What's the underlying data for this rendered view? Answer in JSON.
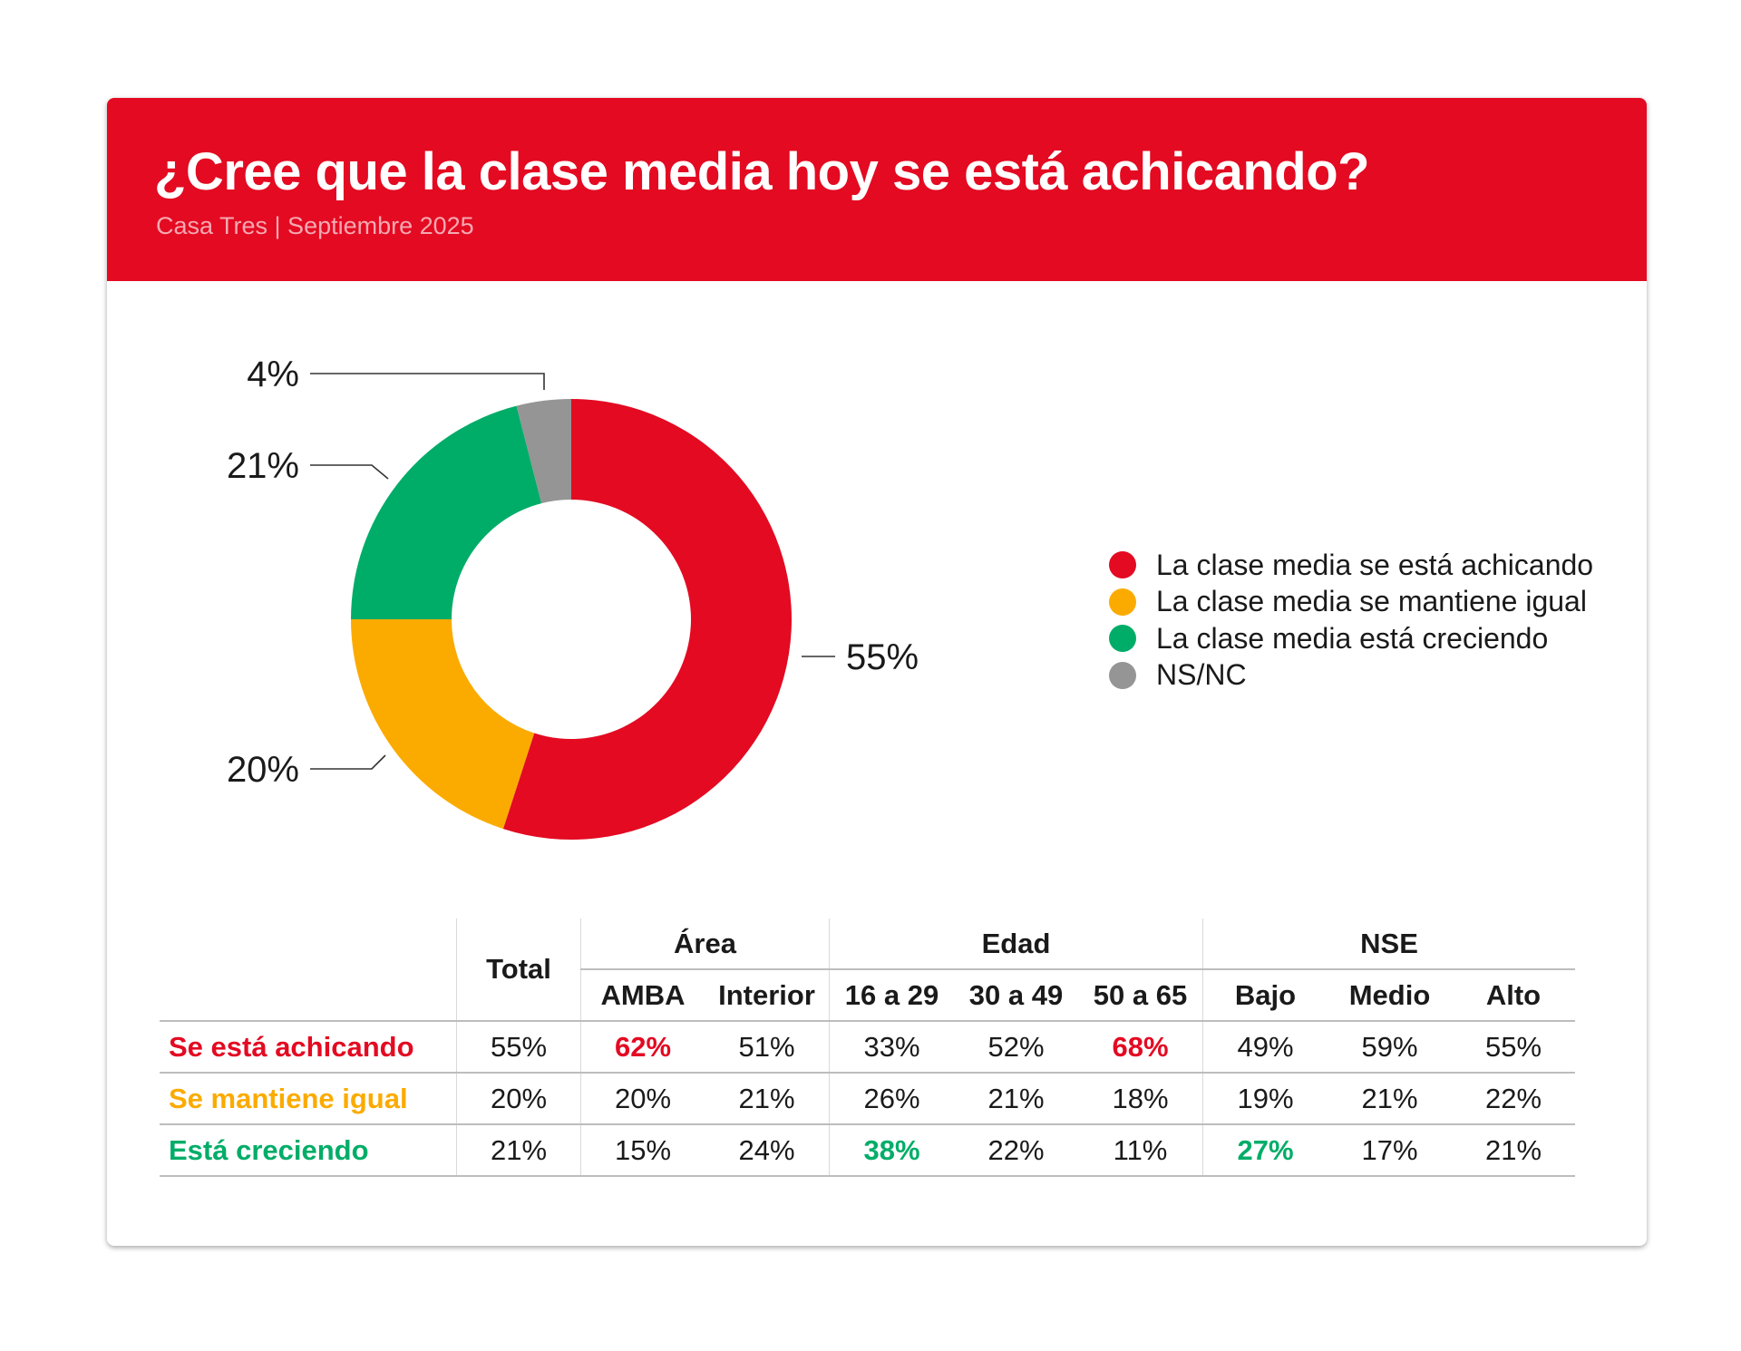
{
  "header": {
    "title": "¿Cree que la clase media hoy se está achicando?",
    "subtitle": "Casa Tres | Septiembre 2025"
  },
  "colors": {
    "brand": "#e30a22",
    "achicando": "#e30a22",
    "igual": "#fbab00",
    "creciendo": "#00ad68",
    "nsnc": "#959595"
  },
  "chart_data": {
    "type": "pie",
    "donut": true,
    "categories": [
      "La clase media se está achicando",
      "La clase media se mantiene igual",
      "La clase media está creciendo",
      "NS/NC"
    ],
    "values": [
      55,
      20,
      21,
      4
    ],
    "data_labels": [
      "55%",
      "20%",
      "21%",
      "4%"
    ],
    "colors": [
      "#e30a22",
      "#fbab00",
      "#00ad68",
      "#959595"
    ],
    "legend_placement": "right"
  },
  "table": {
    "groups": [
      "Área",
      "Edad",
      "NSE"
    ],
    "total_label": "Total",
    "columns": [
      "AMBA",
      "Interior",
      "16 a 29",
      "30 a 49",
      "50 a 65",
      "Bajo",
      "Medio",
      "Alto"
    ],
    "rows": [
      {
        "label": "Se está achicando",
        "color": "#e30a22",
        "values": [
          "55%",
          "62%",
          "51%",
          "33%",
          "52%",
          "68%",
          "49%",
          "59%",
          "55%"
        ],
        "highlight": [
          1,
          5
        ]
      },
      {
        "label": "Se mantiene igual",
        "color": "#fbab00",
        "values": [
          "20%",
          "20%",
          "21%",
          "26%",
          "21%",
          "18%",
          "19%",
          "21%",
          "22%"
        ],
        "highlight": []
      },
      {
        "label": "Está creciendo",
        "color": "#00ad68",
        "values": [
          "21%",
          "15%",
          "24%",
          "38%",
          "22%",
          "11%",
          "27%",
          "17%",
          "21%"
        ],
        "highlight": [
          3,
          6
        ]
      }
    ]
  }
}
